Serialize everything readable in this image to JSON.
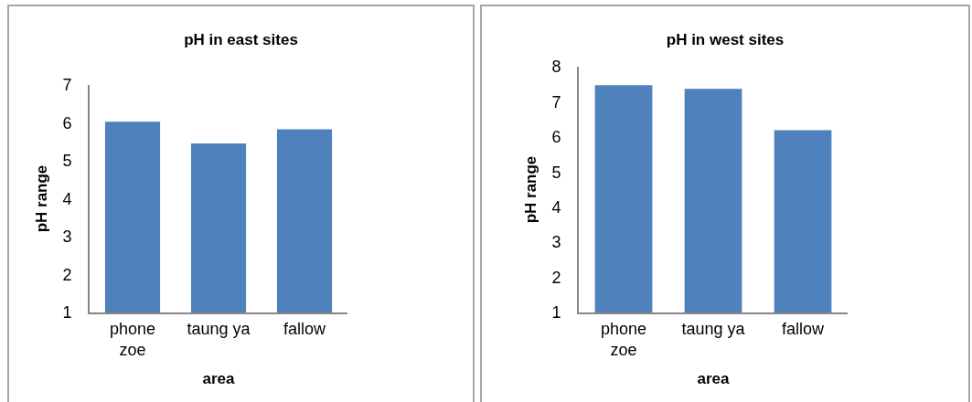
{
  "chart_data": [
    {
      "type": "bar",
      "title": "pH in east sites",
      "xlabel": "area",
      "ylabel": "pH range",
      "categories": [
        "phone zoe",
        "taung ya",
        "fallow"
      ],
      "values": [
        6.03,
        5.46,
        5.83
      ],
      "color": "#4f81bd",
      "ylim": [
        1,
        7
      ],
      "yticks": [
        1,
        2,
        3,
        4,
        5,
        6,
        7
      ]
    },
    {
      "type": "bar",
      "title": "pH in west sites",
      "xlabel": "area",
      "ylabel": "pH range",
      "categories": [
        "phone zoe",
        "taung ya",
        "fallow"
      ],
      "values": [
        7.47,
        7.37,
        6.19
      ],
      "color": "#4f81bd",
      "ylim": [
        1,
        8
      ],
      "yticks": [
        1,
        2,
        3,
        4,
        5,
        6,
        7,
        8
      ]
    }
  ]
}
